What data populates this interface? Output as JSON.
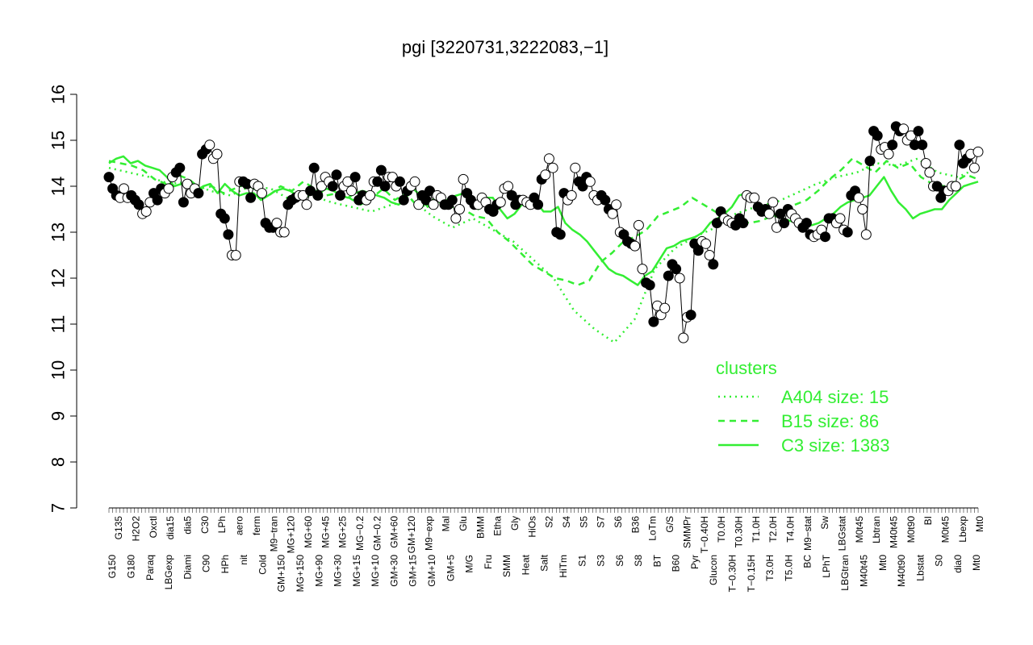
{
  "chart_data": {
    "type": "line",
    "title": "pgi [3220731,3222083,−1]",
    "xlabel": "",
    "ylabel": "",
    "ylim": [
      7,
      16
    ],
    "y_ticks": [
      "7",
      "8",
      "9",
      "10",
      "11",
      "12",
      "13",
      "14",
      "15",
      "16"
    ],
    "grid": false,
    "legend": {
      "title": "clusters",
      "placement": "bottom-right",
      "color": "#33ee33",
      "entries": [
        {
          "label": "A404 size: 15",
          "style": "dotted"
        },
        {
          "label": "B15 size: 86",
          "style": "dashed"
        },
        {
          "label": "C3 size: 1383",
          "style": "solid"
        }
      ]
    },
    "x_top_labels": [
      "G135",
      "H2O2",
      "Oxctl",
      "dia15",
      "dia5",
      "C30",
      "LPh",
      "aero",
      "ferm",
      "M9−tran",
      "MG+120",
      "MG+60",
      "MG+45",
      "MG+25",
      "MG−0.2",
      "GM−0.2",
      "GM+60",
      "GM+120",
      "M9−exp",
      "Mal",
      "Glu",
      "BMM",
      "Etha",
      "Gly",
      "HiOs",
      "S2",
      "S4",
      "S5",
      "S7",
      "S6",
      "B36",
      "LoTm",
      "G/S",
      "SMMPr",
      "T−0.40H",
      "T0.0H",
      "T0.30H",
      "T1.0H",
      "T2.0H",
      "T4.0H",
      "M9−stat",
      "Sw",
      "LBGstat",
      "M0t45",
      "Lbtran",
      "M40t45",
      "M0t90",
      "BI",
      "M0t45",
      "Lbexp",
      "Mt0"
    ],
    "x_bottom_labels": [
      "G150",
      "G180",
      "Paraq",
      "LBGexp",
      "Diami",
      "C90",
      "HPh",
      "nit",
      "Cold",
      "GM+150",
      "MG+150",
      "MG+90",
      "MG+30",
      "MG+15",
      "MG+10",
      "GM+30",
      "GM+15",
      "GM+10",
      "GM+5",
      "M/G",
      "Fru",
      "SMM",
      "Heat",
      "Salt",
      "HiTm",
      "S1",
      "S3",
      "S6",
      "S8",
      "BT",
      "B60",
      "Pyr",
      "Glucon",
      "T−0.30H",
      "T−0.15H",
      "T3.0H",
      "T5.0H",
      "BC",
      "LPhT",
      "LBGtran",
      "M40t45",
      "Mt0",
      "M40t90",
      "Lbstat",
      "S0",
      "dia0",
      "Mt0"
    ],
    "series": [
      {
        "kind": "points",
        "values": [
          14.2,
          13.95,
          13.8,
          13.75,
          13.95,
          13.75,
          13.8,
          13.7,
          13.6,
          13.4,
          13.45,
          13.65,
          13.85,
          13.7,
          13.95,
          13.85,
          13.95,
          14.2,
          14.3,
          14.4,
          13.65,
          14.05,
          13.85,
          13.95,
          13.85,
          14.7,
          14.8,
          14.9,
          14.6,
          14.7,
          13.4,
          13.3,
          12.95,
          12.5,
          12.5,
          14.1,
          14.1,
          14.05,
          13.75,
          14.05,
          14.0,
          13.85,
          13.2,
          13.1,
          13.1,
          13.2,
          13.0,
          13.0,
          13.6,
          13.7,
          13.75,
          13.8,
          13.8,
          13.6,
          13.9,
          14.4,
          13.8,
          14.0,
          14.2,
          14.1,
          14.0,
          14.25,
          13.8,
          14.0,
          14.1,
          13.9,
          14.2,
          13.7,
          13.8,
          13.7,
          13.8,
          14.1,
          14.1,
          14.35,
          14.0,
          14.2,
          14.2,
          14.0,
          14.1,
          13.7,
          13.9,
          14.0,
          14.1,
          13.6,
          13.8,
          13.7,
          13.9,
          13.6,
          13.8,
          13.75,
          13.6,
          13.6,
          13.7,
          13.3,
          13.5,
          14.15,
          13.85,
          13.7,
          13.6,
          13.6,
          13.75,
          13.65,
          13.5,
          13.45,
          13.6,
          13.65,
          13.95,
          14.0,
          13.8,
          13.6,
          13.7,
          13.7,
          13.65,
          13.6,
          13.75,
          13.6,
          14.15,
          14.25,
          14.6,
          14.4,
          13.0,
          12.95,
          13.85,
          13.7,
          13.8,
          14.4,
          14.1,
          14.0,
          14.2,
          14.1,
          13.8,
          13.7,
          13.8,
          13.7,
          13.5,
          13.4,
          13.6,
          13.0,
          12.95,
          12.8,
          12.75,
          12.7,
          13.15,
          12.2,
          11.9,
          11.85,
          11.05,
          11.4,
          11.2,
          11.35,
          12.05,
          12.3,
          12.2,
          12.0,
          10.7,
          11.15,
          11.2,
          12.75,
          12.6,
          12.8,
          12.75,
          12.5,
          12.3,
          13.2,
          13.45,
          13.3,
          13.25,
          13.2,
          13.15,
          13.3,
          13.2,
          13.8,
          13.75,
          13.75,
          13.55,
          13.45,
          13.5,
          13.4,
          13.65,
          13.1,
          13.4,
          13.2,
          13.5,
          13.4,
          13.3,
          13.2,
          13.1,
          13.2,
          12.95,
          12.9,
          12.95,
          13.05,
          12.9,
          13.3,
          13.3,
          13.2,
          13.3,
          13.05,
          13.0,
          13.8,
          13.9,
          13.75,
          13.5,
          12.95,
          14.55,
          15.2,
          15.1,
          14.8,
          14.85,
          14.7,
          14.9,
          15.3,
          15.2,
          15.25,
          15.0,
          15.1,
          14.9,
          15.2,
          14.9,
          14.5,
          14.3,
          14.0,
          14.0,
          13.75,
          13.9,
          13.9,
          14.0,
          14.0,
          14.9,
          14.5,
          14.6,
          14.7,
          14.4,
          14.75
        ],
        "y_tick_labels_shown": true
      },
      {
        "name": "C3 size: 1383",
        "values": [
          14.5,
          14.6,
          14.65,
          14.5,
          14.55,
          14.45,
          14.4,
          14.35,
          14.2,
          14.0,
          14.05,
          13.95,
          13.9,
          14.0,
          14.05,
          13.85,
          14.05,
          13.9,
          13.8,
          13.85,
          13.85,
          13.7,
          13.8,
          13.9,
          13.95,
          13.9,
          13.8,
          13.85,
          13.95,
          13.85,
          13.95,
          13.9,
          13.8,
          13.75,
          13.85,
          13.9,
          13.85,
          13.8,
          13.75,
          13.65,
          13.6,
          13.75,
          13.95,
          13.8,
          13.55,
          13.75,
          13.6,
          13.75,
          13.8,
          13.85,
          13.65,
          13.5,
          13.75,
          13.75,
          13.5,
          13.3,
          13.4,
          13.6,
          13.55,
          13.65,
          13.45,
          13.45,
          13.55,
          13.2,
          13.05,
          12.95,
          12.8,
          12.6,
          12.4,
          12.2,
          12.1,
          12.05,
          11.95,
          11.85,
          12.05,
          12.15,
          12.4,
          12.65,
          12.7,
          12.8,
          12.85,
          12.9,
          13.0,
          13.2,
          13.3,
          13.4,
          13.55,
          13.8,
          13.85,
          13.7,
          13.5,
          13.45,
          13.35,
          13.3,
          13.25,
          13.2,
          13.2,
          13.15,
          13.2,
          13.3,
          13.4,
          13.55,
          13.65,
          13.7,
          13.75,
          13.8,
          14.0,
          14.2,
          13.9,
          13.65,
          13.5,
          13.3,
          13.4,
          13.45,
          13.5,
          13.5,
          13.7,
          13.85,
          14.0,
          14.05,
          14.1
        ]
      },
      {
        "name": "B15 size: 86",
        "values": [
          14.55,
          14.5,
          14.45,
          14.35,
          14.15,
          14.05,
          14.25,
          14.15,
          13.95,
          14.0,
          13.85,
          13.95,
          14.05,
          13.9,
          13.8,
          14.0,
          13.9,
          14.1,
          13.95,
          13.8,
          13.85,
          13.75,
          13.6,
          13.75,
          13.95,
          13.7,
          13.85,
          13.55,
          13.6,
          13.75,
          13.55,
          13.5,
          13.35,
          13.3,
          13.0,
          12.8,
          12.55,
          12.3,
          12.15,
          12.0,
          11.95,
          11.85,
          11.95,
          12.35,
          12.55,
          12.8,
          12.9,
          13.05,
          13.35,
          13.45,
          13.55,
          13.75,
          13.6,
          13.45,
          13.3,
          13.25,
          13.2,
          13.25,
          13.35,
          13.5,
          13.6,
          13.7,
          13.9,
          14.15,
          14.35,
          14.6,
          14.45,
          14.3,
          14.55,
          14.4,
          14.5,
          14.2,
          14.05,
          14.0,
          14.1,
          14.25,
          14.15
        ]
      },
      {
        "name": "A404 size: 15",
        "values": [
          14.4,
          14.3,
          14.2,
          14.05,
          14.1,
          13.9,
          13.8,
          14.0,
          13.95,
          13.7,
          13.8,
          13.65,
          13.55,
          13.45,
          13.6,
          13.7,
          13.35,
          13.1,
          13.3,
          13.05,
          12.8,
          12.4,
          12.0,
          11.3,
          10.9,
          10.6,
          11.1,
          12.2,
          12.65,
          12.9,
          13.1,
          13.4,
          13.55,
          13.65,
          13.85,
          14.05,
          14.2,
          14.3,
          14.5,
          14.45,
          14.6,
          14.3,
          14.2,
          14.4
        ]
      }
    ]
  }
}
